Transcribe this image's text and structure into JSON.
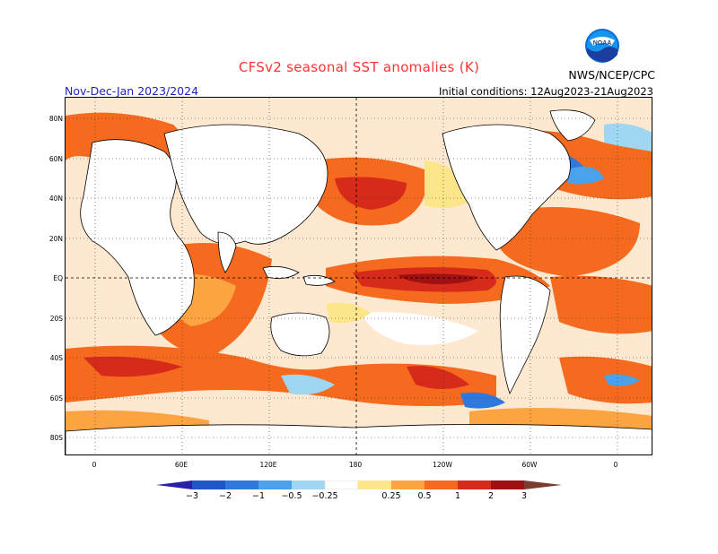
{
  "title": "CFSv2 seasonal SST anomalies (K)",
  "period": "Nov-Dec-Jan 2023/2024",
  "initial_conditions": "Initial conditions: 12Aug2023-21Aug2023",
  "organization": "NWS/NCEP/CPC",
  "logo_text": "NOAA",
  "colors": {
    "title": "#ff3333",
    "period": "#2222bb",
    "land": "#ffffff",
    "grid": "#333333"
  },
  "latitude_labels": [
    "80N",
    "60N",
    "40N",
    "20N",
    "EQ",
    "20S",
    "40S",
    "60S",
    "80S"
  ],
  "longitude_labels": [
    "0",
    "60E",
    "120E",
    "180",
    "120W",
    "60W",
    "0"
  ],
  "colorbar": {
    "labels": [
      "−3",
      "−2",
      "−1",
      "−0.5",
      "−0.25",
      "0.25",
      "0.5",
      "1",
      "2",
      "3"
    ],
    "colors": [
      "#2a1fa8",
      "#1e56c8",
      "#2f78dd",
      "#4aa1ec",
      "#9fd7f3",
      "#ffffff",
      "#fde58a",
      "#fca441",
      "#f56a1e",
      "#d62a1a",
      "#9e1011",
      "#7a3b30"
    ]
  }
}
